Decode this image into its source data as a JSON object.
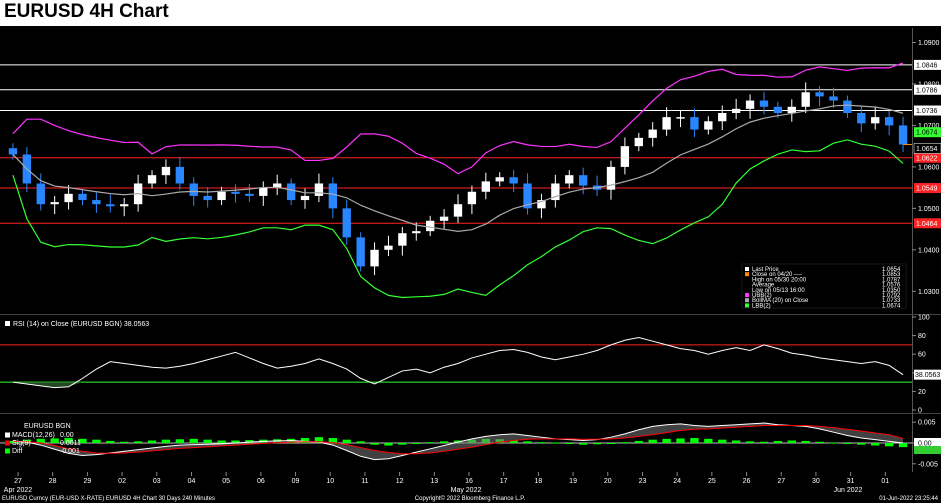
{
  "header": {
    "title": "EURUSD 4H Chart"
  },
  "colors": {
    "background": "#000000",
    "up_candle": "#ffffff",
    "down_candle": "#2a86ff",
    "ubb": "#ff33ff",
    "bollma": "#aaaaaa",
    "lbb": "#33ff33",
    "resistance": "#ffffff",
    "support": "#ff2222",
    "rsi_line": "#ffffff",
    "macd_up": "#00ff00",
    "macd_down": "#ff0000"
  },
  "chart_data": [
    {
      "type": "candlestick",
      "panel": "price",
      "title": "EURUSD 4H Chart",
      "y_axis": {
        "ylim": [
          1.025,
          1.0935
        ],
        "ticks": [
          1.03,
          1.04,
          1.05,
          1.06,
          1.07,
          1.08,
          1.09
        ]
      },
      "x_axis": {
        "ticks": [
          "27",
          "28",
          "29",
          "02",
          "03",
          "04",
          "05",
          "06",
          "09",
          "10",
          "11",
          "12",
          "13",
          "16",
          "17",
          "18",
          "19",
          "20",
          "23",
          "24",
          "25",
          "26",
          "27",
          "30",
          "31",
          "01"
        ],
        "month_labels": [
          "Apr 2022",
          "May 2022",
          "Jun 2022"
        ]
      },
      "close_path": [
        1.063,
        1.056,
        1.051,
        1.0515,
        1.0535,
        1.052,
        1.051,
        1.0505,
        1.051,
        1.056,
        1.058,
        1.06,
        1.056,
        1.053,
        1.052,
        1.054,
        1.0535,
        1.053,
        1.055,
        1.056,
        1.052,
        1.053,
        1.056,
        1.05,
        1.043,
        1.036,
        1.04,
        1.041,
        1.044,
        1.0445,
        1.047,
        1.048,
        1.051,
        1.054,
        1.0565,
        1.0575,
        1.056,
        1.05,
        1.052,
        1.056,
        1.058,
        1.0555,
        1.0545,
        1.06,
        1.065,
        1.067,
        1.069,
        1.072,
        1.072,
        1.069,
        1.071,
        1.073,
        1.074,
        1.076,
        1.0745,
        1.073,
        1.0745,
        1.078,
        1.077,
        1.076,
        1.073,
        1.0705,
        1.072,
        1.07,
        1.0654
      ],
      "horizontal_lines": [
        {
          "value": 1.0846,
          "label": "1.0846",
          "color": "#ffffff",
          "style": "white"
        },
        {
          "value": 1.0786,
          "label": "1.0786",
          "color": "#ffffff",
          "style": "white"
        },
        {
          "value": 1.0736,
          "label": "1.0736",
          "color": "#ffffff",
          "style": "white"
        },
        {
          "value": 1.0622,
          "label": "1.0622",
          "color": "#ff2222",
          "style": "red"
        },
        {
          "value": 1.0549,
          "label": "1.0549",
          "color": "#ff2222",
          "style": "red"
        },
        {
          "value": 1.0464,
          "label": "1.0464",
          "color": "#ff2222",
          "style": "red"
        }
      ],
      "price_tags": [
        {
          "value": 1.0674,
          "label": "1.0674",
          "color": "#33ff33"
        },
        {
          "value": 1.0654,
          "label": "1.0654",
          "color": "#000000"
        }
      ],
      "legend": {
        "placement": "bottom-right",
        "entries": [
          {
            "label": "Last Price",
            "value": "1.0654",
            "swatch": "#ffffff"
          },
          {
            "label": "Close on 04/20 ----",
            "value": "1.0853",
            "swatch": "#ff8800"
          },
          {
            "label": "High on 05/30 20:00",
            "value": "1.0787",
            "swatch": "none"
          },
          {
            "label": "Average",
            "value": "1.0576",
            "swatch": "none"
          },
          {
            "label": "Low on 05/13 16:00",
            "value": "1.0350",
            "swatch": "none"
          },
          {
            "label": "UBB(2)",
            "value": "1.0792",
            "swatch": "#ff33ff"
          },
          {
            "label": "BollMA (20)  on Close",
            "value": "1.0733",
            "swatch": "#aaaaaa"
          },
          {
            "label": "LBB(2)",
            "value": "1.0674",
            "swatch": "#33ff33"
          }
        ]
      }
    },
    {
      "type": "line",
      "panel": "rsi",
      "title": "RSI (14)  on Close (EURUSD BGN) 38.0563",
      "value_label": "38.0563",
      "ylim": [
        0,
        100
      ],
      "ticks": [
        0,
        20,
        40,
        60,
        80,
        100
      ],
      "thresholds": [
        {
          "value": 70,
          "color": "#ff2222"
        },
        {
          "value": 30,
          "color": "#33ff33"
        }
      ],
      "values": [
        30,
        28,
        26,
        24,
        25,
        34,
        44,
        52,
        50,
        48,
        46,
        45,
        47,
        50,
        54,
        58,
        62,
        56,
        50,
        45,
        47,
        50,
        55,
        50,
        44,
        34,
        28,
        35,
        42,
        44,
        40,
        46,
        50,
        56,
        60,
        64,
        65,
        62,
        57,
        54,
        57,
        60,
        64,
        70,
        75,
        78,
        74,
        70,
        66,
        64,
        60,
        64,
        67,
        64,
        70,
        66,
        61,
        59,
        56,
        54,
        52,
        50,
        52,
        48,
        38
      ]
    },
    {
      "type": "bar",
      "panel": "macd",
      "title": "EURUSD BGN",
      "ticks": [
        -0.005,
        0.0,
        0.005
      ],
      "tick_labels": [
        "-0.005",
        "0.00",
        "0.005"
      ],
      "legend": [
        {
          "label": "MACD(12,26)",
          "value": "0.00",
          "swatch": "#ffffff"
        },
        {
          "label": "Sig(9)",
          "value": "0.0011",
          "swatch": "#ff0000"
        },
        {
          "label": "Diff",
          "value": "-0.001",
          "swatch": "#00ff00"
        }
      ],
      "diff_values": [
        0.0005,
        0.0008,
        0.001,
        0.0011,
        0.0012,
        0.001,
        0.0008,
        0.0005,
        0.0003,
        0.0004,
        0.0006,
        0.0008,
        0.0009,
        0.001,
        0.0008,
        0.0006,
        0.0006,
        0.0007,
        0.0008,
        0.0009,
        0.001,
        0.0012,
        0.0014,
        0.0012,
        0.0008,
        0.0004,
        -0.0004,
        -0.0006,
        -0.0004,
        -0.0002,
        0.0002,
        0.0004,
        0.0006,
        0.0008,
        0.001,
        0.0009,
        0.0006,
        0.0004,
        0.0002,
        0.0001,
        -0.0002,
        -0.0004,
        -0.0003,
        -0.0001,
        0.0002,
        0.0005,
        0.0008,
        0.001,
        0.0011,
        0.0012,
        0.001,
        0.0008,
        0.0006,
        0.0004,
        0.0003,
        0.0005,
        0.0006,
        0.0005,
        0.0003,
        0.0001,
        -0.0002,
        -0.0004,
        -0.0006,
        -0.0008,
        -0.001
      ],
      "macd_values": [
        0.0005,
        0.0002,
        -0.0005,
        -0.0015,
        -0.0025,
        -0.003,
        -0.0028,
        -0.0024,
        -0.002,
        -0.0016,
        -0.0012,
        -0.0008,
        -0.0005,
        -0.0004,
        -0.0003,
        -0.0002,
        0.0,
        0.0002,
        0.0004,
        0.0005,
        0.0006,
        0.0004,
        0.0002,
        -0.0005,
        -0.0018,
        -0.0032,
        -0.004,
        -0.0038,
        -0.003,
        -0.0022,
        -0.0014,
        -0.0006,
        0.0002,
        0.001,
        0.0016,
        0.002,
        0.0022,
        0.0018,
        0.0014,
        0.001,
        0.0008,
        0.0006,
        0.0008,
        0.0014,
        0.0022,
        0.0032,
        0.004,
        0.0044,
        0.0046,
        0.0042,
        0.004,
        0.0042,
        0.0044,
        0.0046,
        0.0048,
        0.0044,
        0.0042,
        0.004,
        0.0034,
        0.0026,
        0.0018,
        0.0012,
        0.0008,
        0.0004,
        0.0
      ],
      "signal_values": [
        0.0004,
        0.0003,
        0.0,
        -0.0006,
        -0.0014,
        -0.002,
        -0.0024,
        -0.0025,
        -0.0024,
        -0.0022,
        -0.0019,
        -0.0016,
        -0.0013,
        -0.0011,
        -0.0009,
        -0.0007,
        -0.0005,
        -0.0003,
        -0.0001,
        0.0001,
        0.0002,
        0.0003,
        0.0003,
        0.0001,
        -0.0004,
        -0.0011,
        -0.0018,
        -0.0023,
        -0.0026,
        -0.0026,
        -0.0024,
        -0.002,
        -0.0015,
        -0.001,
        -0.0004,
        0.0002,
        0.0006,
        0.0009,
        0.001,
        0.001,
        0.001,
        0.0009,
        0.0009,
        0.001,
        0.0012,
        0.0016,
        0.002,
        0.0025,
        0.003,
        0.0033,
        0.0034,
        0.0036,
        0.0038,
        0.004,
        0.0042,
        0.0042,
        0.0042,
        0.0042,
        0.004,
        0.0037,
        0.0033,
        0.0029,
        0.0024,
        0.002,
        0.0011
      ]
    }
  ],
  "footer": {
    "left": "EURUSD Curncy (EUR-USD X-RATE) EURUSD 4H Chart 30 Days 240 Minutes",
    "center": "Copyright© 2022 Bloomberg Finance L.P.",
    "right": "01-Jun-2022 23:25:44"
  }
}
